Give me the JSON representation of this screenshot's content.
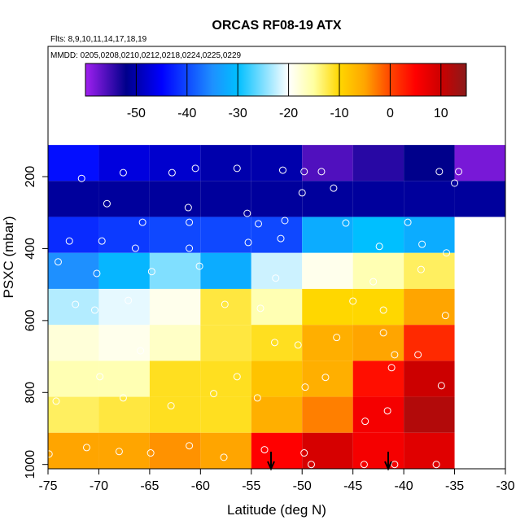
{
  "chart_data": {
    "type": "heatmap",
    "title": "ORCAS RF08-19 ATX",
    "subtitle": "Flts: 8,9,10,11,14,17,18,19",
    "annotation": "MMDD: 0205,0208,0210,0212,0218,0224,0225,0229",
    "x_label": "Latitude (deg N)",
    "y_label": "PSXC (mbar)",
    "xlim": [
      -75,
      -30
    ],
    "xticks": [
      -75,
      -70,
      -65,
      -60,
      -55,
      -50,
      -45,
      -40,
      -35,
      -30
    ],
    "ylim": [
      1012,
      -162
    ],
    "yticks": [
      200,
      400,
      600,
      800,
      1000
    ],
    "x_edges": [
      -75,
      -70,
      -65,
      -60,
      -55,
      -50,
      -45,
      -40,
      -35,
      -30
    ],
    "y_edges": [
      112,
      212,
      312,
      412,
      512,
      612,
      712,
      812,
      912,
      1012
    ],
    "z": [
      [
        -44,
        -47,
        -48,
        -50,
        -50,
        -56,
        -54,
        -52,
        -58
      ],
      [
        -51,
        -51,
        -51,
        -51,
        -51,
        -51,
        -51,
        -51,
        -51
      ],
      [
        -42,
        -41,
        -40,
        -40,
        -40,
        -32,
        -30,
        -32,
        null
      ],
      [
        -35,
        -31,
        -25,
        -32,
        -22,
        -19,
        -16,
        -13,
        null
      ],
      [
        -23,
        -21,
        -19,
        -12,
        -16,
        -10,
        -10,
        -5,
        null
      ],
      [
        -18,
        -19,
        -17,
        -12,
        -11,
        -6,
        -5,
        2,
        null
      ],
      [
        -16,
        -16,
        -11,
        -11,
        -8,
        -6,
        4,
        10,
        null
      ],
      [
        -13,
        -12,
        -11,
        -11,
        -6,
        -3,
        6,
        12,
        null
      ],
      [
        -5,
        -5,
        -4,
        -5,
        5,
        9,
        6,
        8,
        null
      ]
    ],
    "clim": [
      -60,
      15
    ],
    "colorbar_ticks": [
      -50,
      -40,
      -30,
      -20,
      -10,
      0,
      10
    ],
    "colorscale": [
      [
        -60,
        "#a020f0"
      ],
      [
        -52,
        "#00008b"
      ],
      [
        -45,
        "#0000ff"
      ],
      [
        -35,
        "#1e90ff"
      ],
      [
        -30,
        "#00bfff"
      ],
      [
        -20,
        "#ffffff"
      ],
      [
        -15,
        "#ffffa0"
      ],
      [
        -10,
        "#ffd700"
      ],
      [
        -5,
        "#ffa500"
      ],
      [
        0,
        "#ff4500"
      ],
      [
        5,
        "#ff0000"
      ],
      [
        10,
        "#cc0000"
      ],
      [
        15,
        "#8b1a1a"
      ]
    ],
    "points": {
      "x": [
        -71.7,
        -67.6,
        -62.8,
        -60.5,
        -56.4,
        -51.9,
        -49.8,
        -48.1,
        -36.5,
        -34.6,
        -35.0,
        -69.2,
        -61.2,
        -50.0,
        -46.9,
        -55.4,
        -72.9,
        -69.7,
        -65.7,
        -61.1,
        -54.3,
        -51.7,
        -55.3,
        -52.1,
        -45.7,
        -39.6,
        -38.2,
        -66.4,
        -61.1,
        -42.4,
        -35.8,
        -74.0,
        -70.2,
        -64.8,
        -60.1,
        -52.6,
        -43.0,
        -38.3,
        -72.3,
        -70.4,
        -67.1,
        -57.6,
        -54.1,
        -45.0,
        -42.0,
        -35.9,
        -65.9,
        -52.7,
        -50.4,
        -46.6,
        -42.0,
        -40.9,
        -38.6,
        -69.9,
        -56.4,
        -49.7,
        -47.7,
        -41.2,
        -36.3,
        -43.8,
        -41.6,
        -74.2,
        -67.6,
        -62.9,
        -58.7,
        -54.4,
        -74.9,
        -71.2,
        -68.0,
        -64.9,
        -61.1,
        -57.7,
        -53.7,
        -49.8,
        -49.1,
        -43.9,
        -40.9,
        -36.8
      ],
      "y": [
        205,
        189,
        189,
        177,
        177,
        182,
        186,
        186,
        186,
        186,
        218,
        275,
        286,
        245,
        232,
        302,
        379,
        379,
        327,
        327,
        331,
        322,
        383,
        372,
        329,
        327,
        388,
        399,
        399,
        394,
        412,
        437,
        469,
        464,
        449,
        482,
        492,
        458,
        555,
        571,
        544,
        555,
        566,
        546,
        571,
        586,
        684,
        661,
        668,
        647,
        634,
        695,
        695,
        756,
        756,
        785,
        758,
        731,
        781,
        880,
        851,
        824,
        815,
        837,
        803,
        815,
        971,
        953,
        964,
        968,
        948,
        980,
        959,
        968,
        1000,
        1000,
        1000,
        1000
      ]
    }
  }
}
